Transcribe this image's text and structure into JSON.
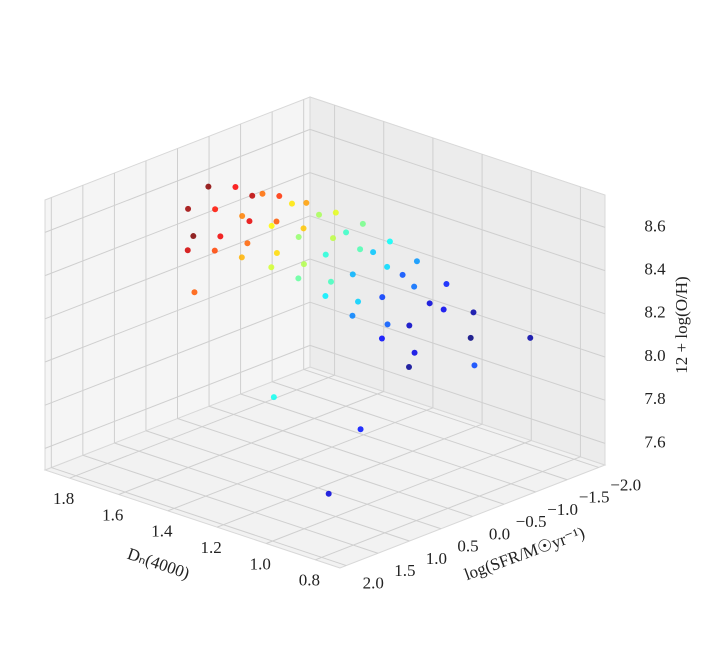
{
  "chart_data": {
    "type": "scatter3d",
    "colormap": "jet",
    "x_label": "Dₙ(4000)",
    "y_label": "log(SFR/M☉yr⁻¹)",
    "z_label": "12 + log(O/H)",
    "xlim": [
      0.7,
      1.9
    ],
    "ylim": [
      2.1,
      -2.1
    ],
    "zlim": [
      7.5,
      8.75
    ],
    "xticks": [
      0.8,
      {
        "value": 1,
        "label": "1.0"
      },
      1.2,
      1.4,
      1.6,
      1.8
    ],
    "yticks": [
      {
        "value": 2,
        "label": "2.0"
      },
      1.5,
      {
        "value": 1,
        "label": "1.0"
      },
      0.5,
      {
        "value": 0,
        "label": "0.0"
      },
      {
        "value": -0.5,
        "label": "−0.5"
      },
      {
        "value": -1,
        "label": "−1.0"
      },
      {
        "value": -1.5,
        "label": "−1.5"
      },
      {
        "value": -2,
        "label": "−2.0"
      }
    ],
    "zticks": [
      7.6,
      7.8,
      {
        "value": 8,
        "label": "8.0"
      },
      8.2,
      8.4,
      8.6
    ],
    "grid": true,
    "x": [
      1.78,
      1.71,
      1.8,
      1.73,
      1.75,
      1.81,
      1.6,
      1.69,
      1.62,
      1.64,
      1.7,
      1.67,
      1.58,
      1.51,
      1.53,
      1.59,
      1.56,
      1.49,
      1.39,
      1.41,
      1.47,
      1.44,
      1.37,
      1.46,
      1.3,
      1.36,
      1.33,
      1.26,
      1.35,
      1.28,
      1.25,
      1.22,
      1.15,
      1.24,
      1.17,
      1.19,
      1.11,
      1.04,
      1.13,
      1.06,
      1.08,
      1.14,
      0.92,
      1.01,
      0.94,
      0.96,
      1.02,
      0.99,
      0.9,
      0.83,
      0.85,
      0.91,
      0.88,
      0.81,
      0.95,
      1.0,
      0.85,
      1.2,
      1.6,
      0.9
    ],
    "y": [
      0.3,
      -0.4,
      -0.1,
      0.5,
      -0.6,
      0.1,
      -0.4,
      -0.1,
      0.5,
      -0.6,
      0.1,
      0.3,
      -0.1,
      0.5,
      -0.6,
      0.1,
      0.3,
      -0.4,
      0.5,
      -0.6,
      0.1,
      0.3,
      -0.4,
      -0.1,
      -0.6,
      0.1,
      0.3,
      -0.4,
      -0.1,
      0.5,
      0.1,
      0.3,
      -0.4,
      -0.1,
      0.5,
      -0.6,
      0.3,
      -0.4,
      -0.1,
      0.5,
      -0.6,
      0.1,
      -0.4,
      -0.1,
      0.5,
      -0.6,
      0.1,
      0.3,
      -0.1,
      0.5,
      -0.6,
      0.1,
      0.3,
      -0.4,
      0.8,
      -1.2,
      -1.5,
      1.2,
      0.9,
      1.5
    ],
    "z": [
      8.55,
      8.44,
      8.6,
      8.4,
      8.52,
      8.39,
      8.48,
      8.64,
      8.44,
      8.56,
      8.43,
      8.59,
      8.65,
      8.45,
      8.57,
      8.44,
      8.6,
      8.49,
      8.45,
      8.57,
      8.44,
      8.6,
      8.49,
      8.65,
      8.56,
      8.43,
      8.59,
      8.48,
      8.64,
      8.44,
      8.39,
      8.55,
      8.44,
      8.6,
      8.4,
      8.52,
      8.5,
      8.39,
      8.55,
      8.35,
      8.47,
      8.34,
      8.33,
      8.49,
      8.29,
      8.41,
      8.28,
      8.44,
      8.4,
      8.2,
      8.32,
      8.19,
      8.35,
      8.24,
      7.9,
      7.95,
      8.1,
      8.0,
      8.3,
      7.7
    ]
  }
}
